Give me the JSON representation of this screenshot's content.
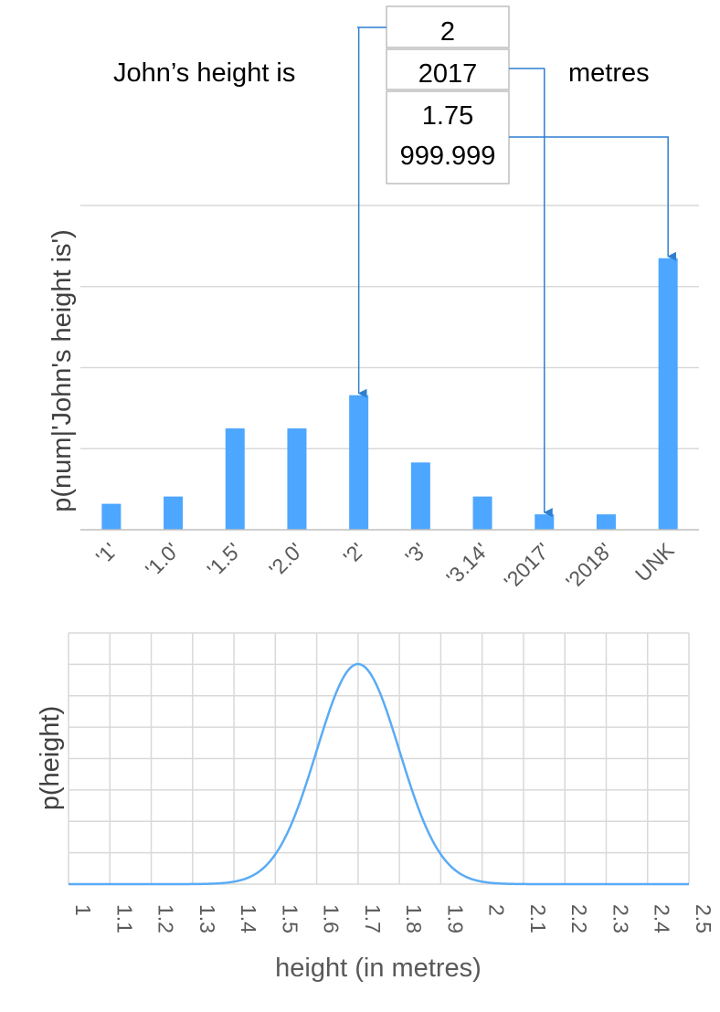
{
  "sentence": {
    "prefix": "John’s height is",
    "suffix": "metres",
    "candidates": [
      "2",
      "2017",
      "1.75",
      "999.999"
    ]
  },
  "colors": {
    "bar": "#4da6ff",
    "arrow": "#2f7fd0",
    "curve": "#5aabf5",
    "grid": "#d9d9d9",
    "axis_text": "#595959"
  },
  "chart_data": [
    {
      "type": "bar",
      "ylabel": "p(num|'John's height is')",
      "categories": [
        "'1'",
        "'1.0'",
        "'1.5'",
        "'2.0'",
        "'2'",
        "'3'",
        "'3.14'",
        "'2017'",
        "'2018'",
        "UNK"
      ],
      "values": [
        0.032,
        0.041,
        0.125,
        0.125,
        0.166,
        0.083,
        0.041,
        0.019,
        0.019,
        0.335
      ],
      "ylim": [
        0,
        0.4
      ],
      "grid": true,
      "annotations": [
        {
          "from": "2",
          "to": "'2'"
        },
        {
          "from": "2017",
          "to": "'2017'"
        },
        {
          "from": "1.75 / 999.999",
          "to": "UNK"
        }
      ]
    },
    {
      "type": "line",
      "ylabel": "p(height)",
      "xlabel": "height (in metres)",
      "x_ticks": [
        "1",
        "1.1",
        "1.2",
        "1.3",
        "1.4",
        "1.5",
        "1.6",
        "1.7",
        "1.8",
        "1.9",
        "2",
        "2.1",
        "2.2",
        "2.3",
        "2.4",
        "2.5"
      ],
      "xlim": [
        1,
        2.5
      ],
      "ylim": [
        0,
        1
      ],
      "distribution": {
        "family": "normal",
        "mean": 1.7,
        "sd": 0.1
      },
      "grid": true
    }
  ]
}
